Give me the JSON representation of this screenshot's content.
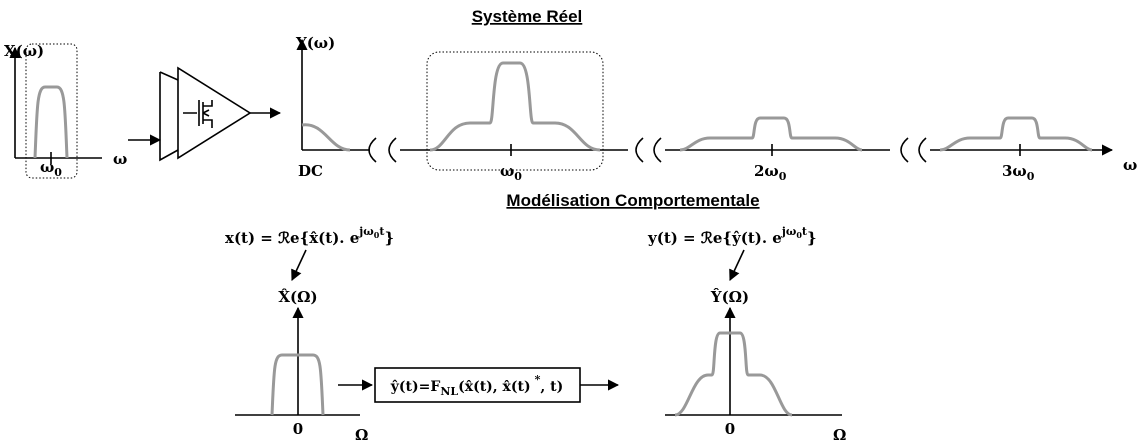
{
  "real_system": {
    "title": "Système Réel",
    "input_label": "X(ω)",
    "input_tick": {
      "base": "ω",
      "sub": "0"
    },
    "input_axis": "ω",
    "output_label": "Y(ω)",
    "dc_label": "DC",
    "harmonics": [
      {
        "base": "ω",
        "sub": "0"
      },
      {
        "base": "2ω",
        "sub": "0"
      },
      {
        "base": "3ω",
        "sub": "0"
      }
    ],
    "output_axis": "ω"
  },
  "behavioral_model": {
    "title": "Modélisation Comportementale",
    "input_equation": {
      "main": "x(t) = ℛe{x̂(t). e",
      "sup_base": "jω",
      "sup_sub": "0",
      "sup_end": "t",
      "tail": "}"
    },
    "output_equation": {
      "main": "y(t) = ℛe{ŷ(t). e",
      "sup_base": "jω",
      "sup_sub": "0",
      "sup_end": "t",
      "tail": "}"
    },
    "input_label": "X̂(Ω)",
    "input_origin": "0",
    "input_axis": "Ω",
    "model": {
      "head": "ŷ(t)=F",
      "sub": "NL",
      "mid": "(x̂(t), x̂(t)",
      "sup": "*",
      "tail": ", t)"
    },
    "output_label": "Ŷ(Ω)",
    "output_origin": "0",
    "output_axis": "Ω"
  }
}
